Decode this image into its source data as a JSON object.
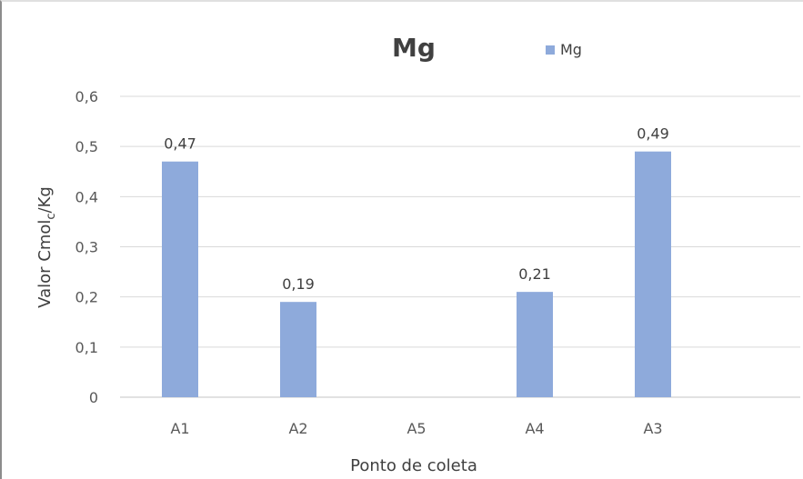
{
  "chart_data": {
    "type": "bar",
    "title": "Mg",
    "xlabel": "Ponto de coleta",
    "ylabel_main": "Valor Cmol",
    "ylabel_sub": "c",
    "ylabel_end": "/Kg",
    "categories": [
      "A1",
      "A2",
      "A5",
      "A4",
      "A3"
    ],
    "series": [
      {
        "name": "Mg",
        "values": [
          0.47,
          0.19,
          null,
          0.21,
          0.49
        ],
        "labels": [
          "0,47",
          "0,19",
          "",
          "0,21",
          "0,49"
        ]
      }
    ],
    "ylim": [
      0,
      0.6
    ],
    "yticks": [
      0,
      0.1,
      0.2,
      0.3,
      0.4,
      0.5,
      0.6
    ],
    "ytick_labels": [
      "0",
      "0,1",
      "0,2",
      "0,3",
      "0,4",
      "0,5",
      "0,6"
    ],
    "grid": true,
    "legend_position": "top",
    "bar_color": "#8eaadb",
    "grid_color": "#d9d9d9"
  }
}
